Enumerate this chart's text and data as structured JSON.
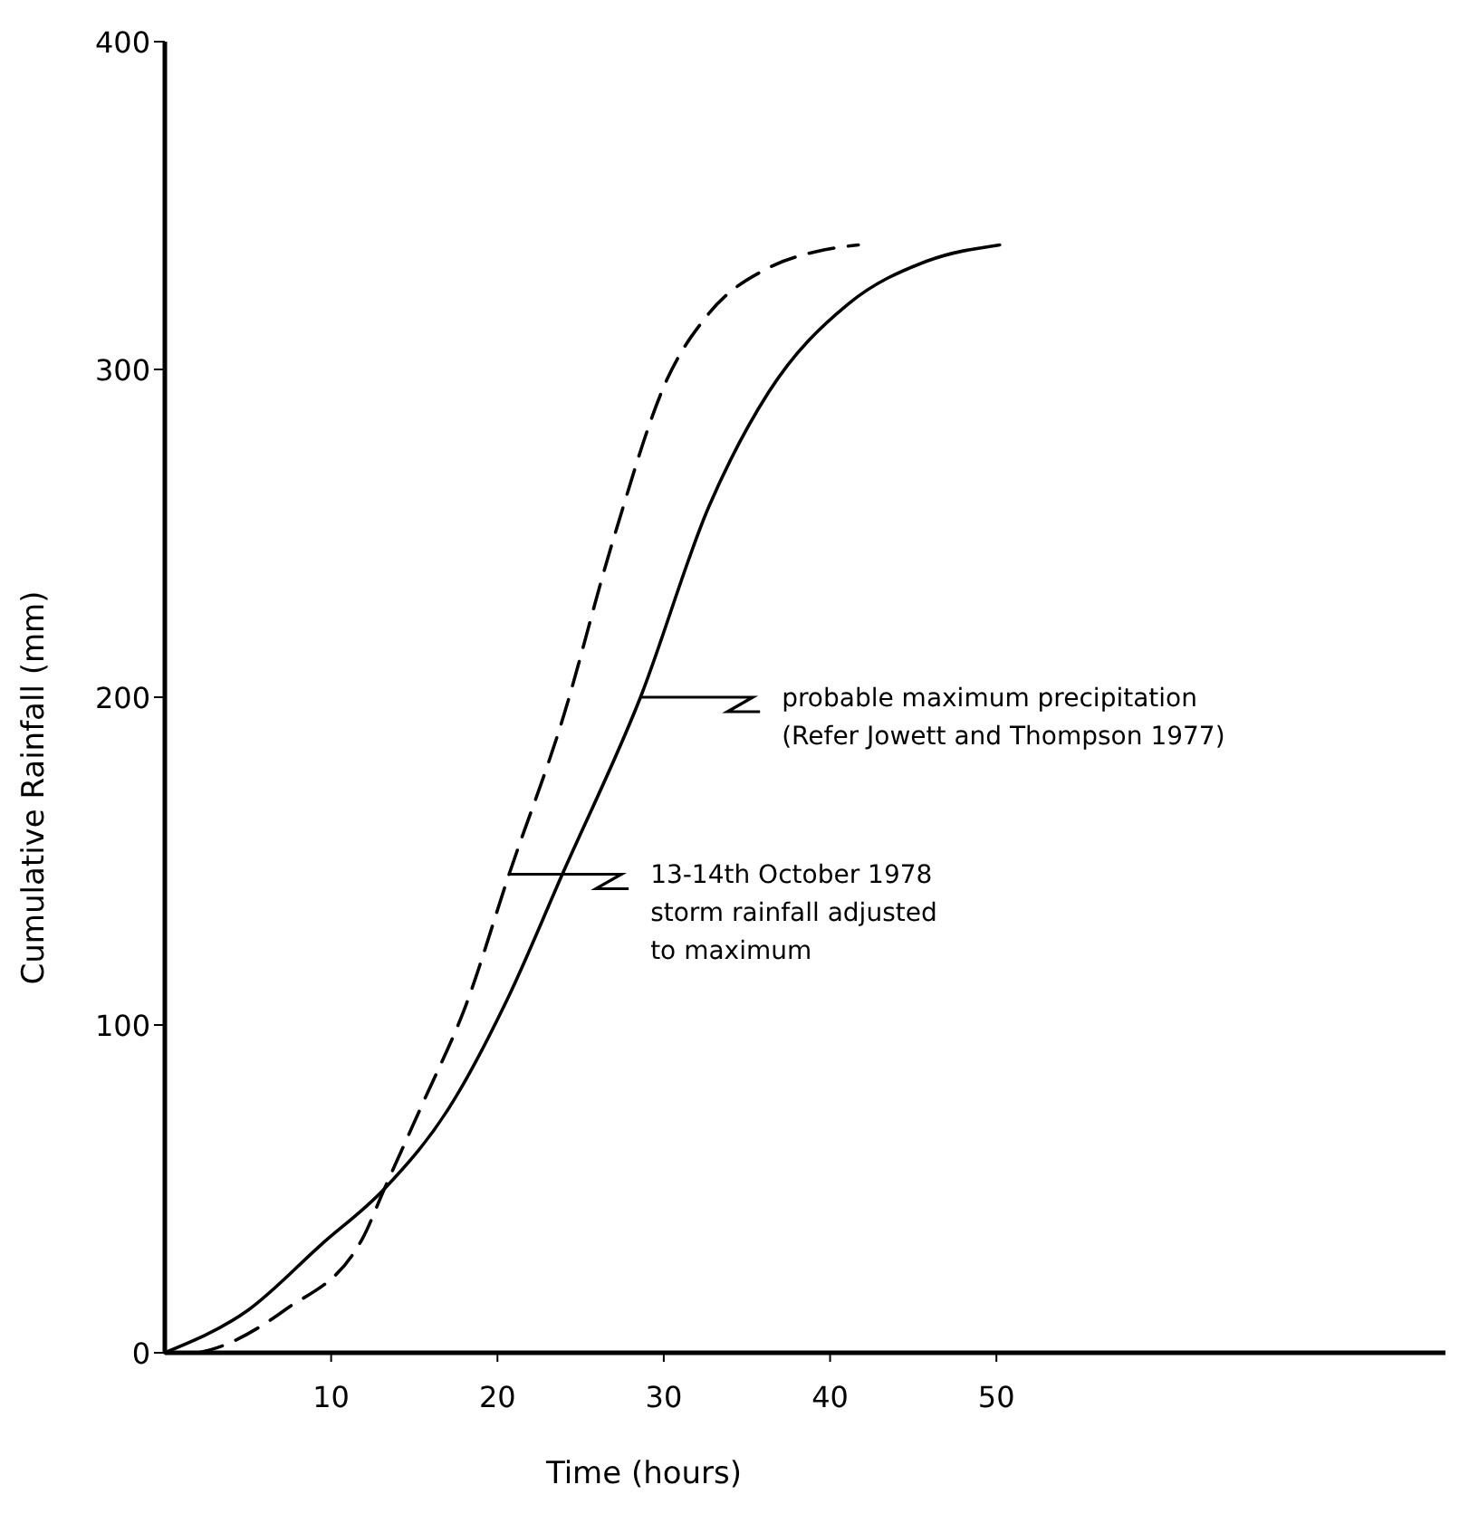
{
  "chart_data": {
    "type": "line",
    "xlabel": "Time (hours)",
    "ylabel": "Cumulative Rainfall (mm)",
    "xlim": [
      0,
      77
    ],
    "ylim": [
      0,
      400
    ],
    "xticks": [
      10,
      20,
      30,
      40,
      50
    ],
    "yticks": [
      0,
      100,
      200,
      300,
      400
    ],
    "grid": false,
    "marker": "none",
    "series": [
      {
        "color": "#000000",
        "line_style": "solid",
        "x": [
          0,
          5,
          9.4,
          13.2,
          17,
          20.7,
          23.9,
          28.6,
          32.7,
          36.3,
          41.1,
          45.8,
          50.2
        ],
        "values": [
          0,
          13,
          33,
          50,
          74,
          109,
          146,
          200,
          258,
          293,
          320,
          333,
          338
        ]
      },
      {
        "color": "#000000",
        "line_style": "dashed",
        "x": [
          2,
          2.8,
          7.2,
          11.9,
          13.2,
          15.5,
          18.1,
          20.7,
          23.9,
          26.9,
          30.2,
          32.7,
          36.3,
          39.2,
          41.7
        ],
        "values": [
          0,
          1,
          13,
          35,
          50,
          76,
          106,
          146,
          193,
          247,
          297,
          317,
          331,
          336,
          338
        ]
      }
    ],
    "annotations": [
      {
        "text": "probable maximum precipitation\n(Refer Jowett and Thompson 1977)",
        "x": 28.6,
        "y": 200
      },
      {
        "text": "13-14th October 1978\nstorm rainfall adjusted\nto maximum",
        "x": 20.7,
        "y": 146
      }
    ]
  }
}
